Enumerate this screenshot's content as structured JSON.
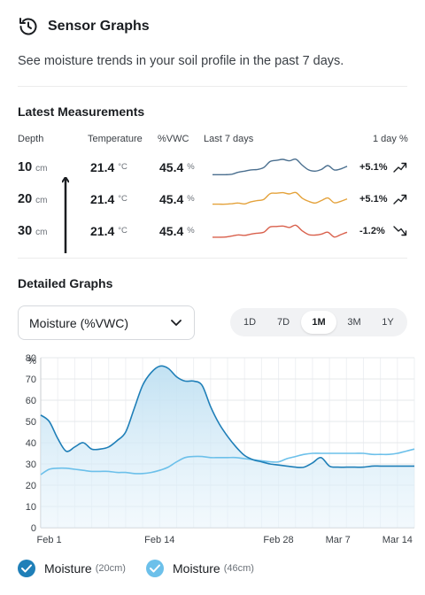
{
  "header": {
    "title": "Sensor Graphs",
    "subtitle": "See moisture trends in your soil profile in the past 7 days.",
    "icon": "history-icon"
  },
  "latest": {
    "title": "Latest Measurements",
    "columns": {
      "depth": "Depth",
      "temperature": "Temperature",
      "vwc": "%VWC",
      "last7": "Last 7 days",
      "day": "1 day %"
    },
    "rows": [
      {
        "depth": "10",
        "depth_unit": "cm",
        "temp": "21.4",
        "temp_unit": "°C",
        "vwc": "45.4",
        "vwc_unit": "%",
        "change": "+5.1%",
        "trend": "up",
        "color": "#4a6f8f",
        "spark": [
          1,
          1,
          1,
          1.2,
          2,
          2.5,
          3,
          3.2,
          4,
          6.5,
          7,
          7.4,
          6.8,
          7.5,
          5,
          3,
          2.5,
          3.2,
          4.8,
          3,
          3.4,
          4.5
        ]
      },
      {
        "depth": "20",
        "depth_unit": "cm",
        "temp": "21.4",
        "temp_unit": "°C",
        "vwc": "45.4",
        "vwc_unit": "%",
        "change": "+5.1%",
        "trend": "up",
        "color": "#e4a23b",
        "spark": [
          2,
          2,
          2,
          2.2,
          2.5,
          2.1,
          3,
          3.5,
          4,
          6.4,
          6.6,
          6.8,
          6.3,
          6.9,
          4.5,
          3.2,
          2.5,
          3.5,
          4.6,
          2.6,
          3.2,
          4.2
        ]
      },
      {
        "depth": "30",
        "depth_unit": "cm",
        "temp": "21.4",
        "temp_unit": "°C",
        "vwc": "45.4",
        "vwc_unit": "%",
        "change": "-1.2%",
        "trend": "down",
        "color": "#d9604c",
        "spark": [
          1.5,
          1.5,
          1.6,
          2,
          2.5,
          2.3,
          2.8,
          3.2,
          3.6,
          5.8,
          6,
          6.2,
          5.6,
          6.5,
          4.2,
          2.6,
          2.4,
          2.8,
          3.6,
          1.6,
          2.6,
          3.6
        ]
      }
    ]
  },
  "detailed": {
    "title": "Detailed Graphs",
    "select_value": "Moisture (%VWC)",
    "ranges": [
      "1D",
      "7D",
      "1M",
      "3M",
      "1Y"
    ],
    "active_range": "1M"
  },
  "legend": [
    {
      "label": "Moisture",
      "sub": "(20cm)",
      "color": "#1f7fb8"
    },
    {
      "label": "Moisture",
      "sub": "(46cm)",
      "color": "#6cc0ea"
    }
  ],
  "chart_data": {
    "type": "line",
    "ylabel": "%",
    "ylim": [
      0,
      80
    ],
    "yticks": [
      0,
      10,
      20,
      30,
      40,
      50,
      60,
      70,
      80
    ],
    "xlim": [
      0,
      44
    ],
    "xticks": [
      {
        "x": 1,
        "label": "Feb 1"
      },
      {
        "x": 14,
        "label": "Feb 14"
      },
      {
        "x": 28,
        "label": "Feb 28"
      },
      {
        "x": 35,
        "label": "Mar 7"
      },
      {
        "x": 42,
        "label": "Mar 14"
      }
    ],
    "grid": true,
    "series": [
      {
        "name": "Moisture (20cm)",
        "color": "#1f7fb8",
        "fill": true,
        "x": [
          0,
          1,
          2,
          3,
          4,
          5,
          6,
          7,
          8,
          9,
          10,
          11,
          12,
          13,
          14,
          15,
          16,
          17,
          18,
          19,
          20,
          21,
          22,
          23,
          24,
          25,
          26,
          27,
          28,
          29,
          30,
          31,
          32,
          33,
          34,
          35,
          36,
          37,
          38,
          39,
          40,
          41,
          42,
          43,
          44
        ],
        "values": [
          53,
          50,
          42,
          36,
          38,
          40,
          37,
          37,
          38,
          41,
          45,
          56,
          67,
          73,
          76,
          75,
          71,
          69,
          69,
          67,
          57,
          49,
          43,
          38,
          34,
          32,
          31,
          30,
          29.5,
          29,
          28.5,
          28.5,
          30.5,
          33,
          29,
          28.5,
          28.5,
          28.5,
          28.5,
          29,
          29,
          29,
          29,
          29,
          29
        ]
      },
      {
        "name": "Moisture (46cm)",
        "color": "#6cc0ea",
        "fill": false,
        "x": [
          0,
          1,
          2,
          3,
          4,
          5,
          6,
          7,
          8,
          9,
          10,
          11,
          12,
          13,
          14,
          15,
          16,
          17,
          18,
          19,
          20,
          21,
          22,
          23,
          24,
          25,
          26,
          27,
          28,
          29,
          30,
          31,
          32,
          33,
          34,
          35,
          36,
          37,
          38,
          39,
          40,
          41,
          42,
          43,
          44
        ],
        "values": [
          25,
          27.5,
          28,
          28,
          27.5,
          27,
          26.5,
          26.5,
          26.5,
          26,
          26,
          25.5,
          25.5,
          26,
          27,
          28.5,
          31,
          33,
          33.5,
          33.5,
          33,
          33,
          33,
          33,
          32.5,
          32,
          31.5,
          31,
          31,
          32.5,
          33.5,
          34.5,
          35,
          35,
          35,
          35,
          35,
          35,
          35,
          34.5,
          34.5,
          34.5,
          35,
          36,
          37
        ]
      }
    ]
  }
}
